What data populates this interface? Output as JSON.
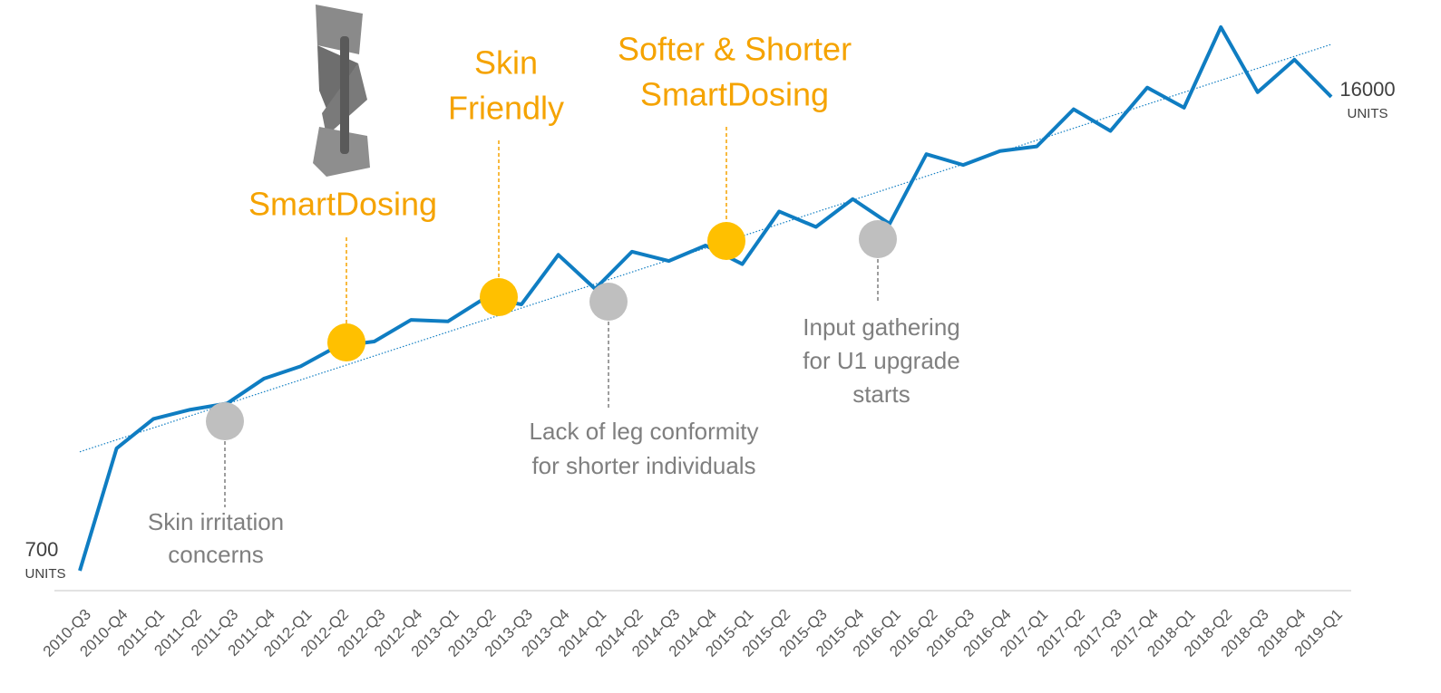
{
  "chart_data": {
    "type": "line",
    "categories": [
      "2010-Q3",
      "2010-Q4",
      "2011-Q1",
      "2011-Q2",
      "2011-Q3",
      "2011-Q4",
      "2012-Q1",
      "2012-Q2",
      "2012-Q3",
      "2012-Q4",
      "2013-Q1",
      "2013-Q2",
      "2013-Q3",
      "2013-Q4",
      "2014-Q1",
      "2014-Q2",
      "2014-Q3",
      "2014-Q4",
      "2015-Q1",
      "2015-Q2",
      "2015-Q3",
      "2015-Q4",
      "2016-Q1",
      "2016-Q2",
      "2016-Q3",
      "2016-Q4",
      "2017-Q1",
      "2017-Q2",
      "2017-Q3",
      "2017-Q4",
      "2018-Q1",
      "2018-Q2",
      "2018-Q3",
      "2018-Q4",
      "2019-Q1"
    ],
    "values": [
      700,
      4650,
      5600,
      5900,
      6100,
      6900,
      7300,
      7950,
      8100,
      8800,
      8750,
      9500,
      9300,
      10900,
      9800,
      11000,
      10700,
      11200,
      10600,
      12300,
      11800,
      12700,
      11900,
      14150,
      13800,
      14250,
      14400,
      15600,
      14900,
      16300,
      15650,
      18250,
      16150,
      17200,
      16000
    ],
    "color": "#0f7dc2",
    "unit_label": "UNITS",
    "trendline": true,
    "annotations": [
      {
        "text": [
          "SmartDosing"
        ],
        "category": "2012-Q2",
        "color": "#f5a300"
      },
      {
        "text": [
          "Skin",
          "Friendly"
        ],
        "category": "2013-Q2",
        "color": "#f5a300"
      },
      {
        "text": [
          "Softer & Shorter",
          "SmartDosing"
        ],
        "category": "2014-Q4",
        "color": "#f5a300"
      },
      {
        "text": [
          "Skin irritation",
          "concerns"
        ],
        "category": "2011-Q3",
        "color": "#7f7f7f"
      },
      {
        "text": [
          "Lack of leg conformity",
          "for shorter individuals"
        ],
        "category": "2014-Q1",
        "color": "#7f7f7f"
      },
      {
        "text": [
          "Input gathering",
          "for U1 upgrade",
          "starts"
        ],
        "category": "2016-Q1",
        "color": "#7f7f7f"
      }
    ]
  }
}
